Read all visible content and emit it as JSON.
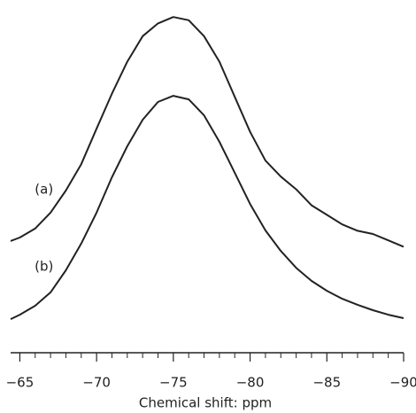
{
  "chart_data": {
    "type": "line",
    "x_label": "Chemical shift: ppm",
    "x": [
      -64.4,
      -65,
      -66,
      -67,
      -68,
      -69,
      -70,
      -71,
      -72,
      -73,
      -74,
      -75,
      -76,
      -77,
      -78,
      -79,
      -80,
      -81,
      -82,
      -83,
      -84,
      -85,
      -86,
      -87,
      -88,
      -89,
      -90
    ],
    "series": [
      {
        "name": "(a)",
        "color": "#222222",
        "values": [
          27.8,
          28.9,
          31.7,
          36.7,
          43.6,
          51.9,
          63,
          74,
          84,
          92,
          96,
          98,
          97,
          92,
          84,
          73,
          62,
          53,
          48,
          44,
          39,
          36,
          33,
          31,
          30,
          28,
          26
        ]
      },
      {
        "name": "(b)",
        "color": "#222222",
        "values": [
          3.3,
          4.7,
          7.5,
          11.7,
          18.6,
          27,
          36.7,
          47.8,
          57.5,
          65.8,
          71.4,
          73.3,
          72.2,
          67.2,
          58.9,
          49.2,
          39.4,
          31.1,
          24.7,
          19.4,
          15.3,
          12.2,
          9.7,
          7.8,
          6.1,
          4.7,
          3.6
        ]
      }
    ],
    "xlim": [
      -64.4,
      -90
    ],
    "ylim": [
      0,
      100
    ],
    "xticks": [
      {
        "value": -65,
        "label": "−65"
      },
      {
        "value": -70,
        "label": "−70"
      },
      {
        "value": -75,
        "label": "−75"
      },
      {
        "value": -80,
        "label": "−80"
      },
      {
        "value": -85,
        "label": "−85"
      },
      {
        "value": -90,
        "label": "−90"
      }
    ],
    "xminor_ticks": [
      -66,
      -67,
      -68,
      -69,
      -71,
      -72,
      -73,
      -74,
      -76,
      -77,
      -78,
      -79,
      -81,
      -82,
      -83,
      -84,
      -86,
      -87,
      -88,
      -89
    ]
  }
}
